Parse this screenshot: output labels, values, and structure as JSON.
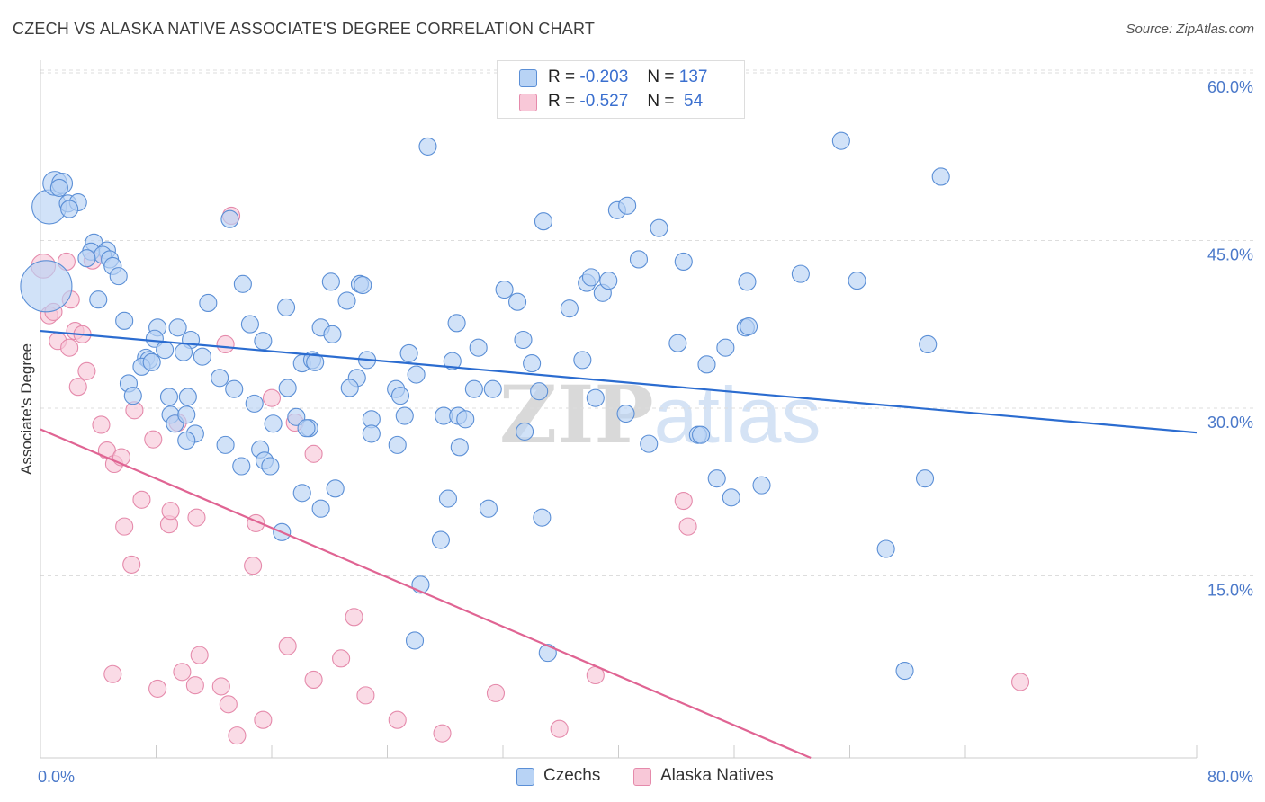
{
  "title": "CZECH VS ALASKA NATIVE ASSOCIATE'S DEGREE CORRELATION CHART",
  "source": "Source: ZipAtlas.com",
  "watermark": "ZIPatlas",
  "legend": {
    "czech": {
      "r_label": "R =",
      "r_value": "-0.203",
      "n_label": "N =",
      "n_value": "137"
    },
    "alaska": {
      "r_label": "R =",
      "r_value": "-0.527",
      "n_label": "N =",
      "n_value": " 54"
    }
  },
  "bottom_legend": {
    "czech": "Czechs",
    "alaska": "Alaska Natives"
  },
  "colors": {
    "czech_fill": "#b8d3f5",
    "czech_stroke": "#5b8fd6",
    "czech_line": "#2b6cd0",
    "alaska_fill": "#f8c8d8",
    "alaska_stroke": "#e58aab",
    "alaska_line": "#e06493",
    "grid": "#dddddd",
    "tick_text": "#4a78c9"
  },
  "chart_data": {
    "type": "scatter",
    "xlabel": "",
    "ylabel": "Associate's Degree",
    "xlim": [
      0,
      80
    ],
    "ylim": [
      0,
      60
    ],
    "x_tick_labels": {
      "min": "0.0%",
      "max": "80.0%"
    },
    "y_ticks": [
      {
        "value": 15,
        "label": "15.0%"
      },
      {
        "value": 30,
        "label": "30.0%"
      },
      {
        "value": 45,
        "label": "45.0%"
      },
      {
        "value": 60,
        "label": "60.0%"
      }
    ],
    "grid": "horizontal dashed",
    "legend_position": "top-center",
    "series": [
      {
        "name": "Czechs",
        "trend": {
          "x1": 0,
          "y1": 38.2,
          "x2": 80,
          "y2": 29.1
        },
        "points": [
          [
            0.4,
            42.2,
            3
          ],
          [
            0.6,
            49.3,
            2
          ],
          [
            1.0,
            51.4,
            1.4
          ],
          [
            1.5,
            51.4,
            1.2
          ],
          [
            1.3,
            51.0,
            1
          ],
          [
            1.9,
            49.6,
            1
          ],
          [
            2.6,
            49.7,
            1
          ],
          [
            2.0,
            49.1,
            1
          ],
          [
            3.7,
            46.1,
            1
          ],
          [
            4.6,
            45.4,
            1
          ],
          [
            3.5,
            45.3,
            1
          ],
          [
            4.3,
            45.0,
            1
          ],
          [
            3.2,
            44.7,
            1
          ],
          [
            4.8,
            44.6,
            1
          ],
          [
            5.0,
            44.0,
            1
          ],
          [
            5.4,
            43.1,
            1
          ],
          [
            4.0,
            41.0,
            1
          ],
          [
            5.8,
            39.1,
            1
          ],
          [
            8.1,
            38.5,
            1
          ],
          [
            9.5,
            38.5,
            1
          ],
          [
            7.9,
            37.5,
            1
          ],
          [
            10.4,
            37.4,
            1
          ],
          [
            8.6,
            36.5,
            1
          ],
          [
            9.9,
            36.3,
            1
          ],
          [
            7.3,
            35.8,
            1
          ],
          [
            7.5,
            35.6,
            1
          ],
          [
            7.0,
            35.0,
            1
          ],
          [
            7.7,
            35.4,
            1
          ],
          [
            6.1,
            33.5,
            1
          ],
          [
            6.4,
            32.4,
            1
          ],
          [
            8.9,
            32.3,
            1
          ],
          [
            9.0,
            30.7,
            1
          ],
          [
            9.3,
            29.9,
            1
          ],
          [
            10.1,
            30.7,
            1
          ],
          [
            10.2,
            32.3,
            1
          ],
          [
            11.2,
            35.9,
            1
          ],
          [
            12.4,
            34.0,
            1
          ],
          [
            11.6,
            40.7,
            1
          ],
          [
            13.1,
            48.2,
            1
          ],
          [
            14.0,
            42.4,
            1
          ],
          [
            14.5,
            38.8,
            1
          ],
          [
            15.4,
            37.3,
            1
          ],
          [
            13.4,
            33.0,
            1
          ],
          [
            14.8,
            31.7,
            1
          ],
          [
            10.7,
            29.0,
            1
          ],
          [
            10.1,
            28.4,
            1
          ],
          [
            12.8,
            28.0,
            1
          ],
          [
            13.9,
            26.1,
            1
          ],
          [
            15.2,
            27.6,
            1
          ],
          [
            15.5,
            26.6,
            1
          ],
          [
            15.9,
            26.1,
            1
          ],
          [
            16.1,
            29.9,
            1
          ],
          [
            17.1,
            33.1,
            1
          ],
          [
            17.0,
            40.3,
            1
          ],
          [
            17.7,
            30.5,
            1
          ],
          [
            18.1,
            35.3,
            1
          ],
          [
            18.8,
            35.6,
            1
          ],
          [
            19.0,
            35.4,
            1
          ],
          [
            19.4,
            38.5,
            1
          ],
          [
            20.2,
            37.9,
            1
          ],
          [
            20.1,
            42.6,
            1
          ],
          [
            21.2,
            40.9,
            1
          ],
          [
            22.1,
            42.4,
            1
          ],
          [
            22.3,
            42.3,
            1
          ],
          [
            22.6,
            35.6,
            1
          ],
          [
            21.9,
            34.0,
            1
          ],
          [
            21.4,
            33.1,
            1
          ],
          [
            18.6,
            29.5,
            1
          ],
          [
            18.4,
            29.5,
            1
          ],
          [
            18.1,
            23.7,
            1
          ],
          [
            19.4,
            22.3,
            1
          ],
          [
            20.4,
            24.1,
            1
          ],
          [
            16.7,
            20.2,
            1
          ],
          [
            22.9,
            30.3,
            1
          ],
          [
            22.9,
            29.0,
            1
          ],
          [
            24.6,
            33.0,
            1
          ],
          [
            24.9,
            32.4,
            1
          ],
          [
            25.5,
            36.2,
            1
          ],
          [
            26.0,
            34.3,
            1
          ],
          [
            25.2,
            30.6,
            1
          ],
          [
            24.7,
            28.0,
            1
          ],
          [
            26.8,
            54.7,
            1
          ],
          [
            28.5,
            35.5,
            1
          ],
          [
            28.8,
            38.9,
            1
          ],
          [
            27.9,
            30.6,
            1
          ],
          [
            28.9,
            30.6,
            1
          ],
          [
            29.4,
            30.3,
            1
          ],
          [
            29.0,
            27.8,
            1
          ],
          [
            28.2,
            23.2,
            1
          ],
          [
            27.7,
            19.5,
            1
          ],
          [
            30.0,
            33.0,
            1
          ],
          [
            30.3,
            36.7,
            1
          ],
          [
            31.3,
            33.0,
            1
          ],
          [
            31.0,
            22.3,
            1
          ],
          [
            32.1,
            41.9,
            1
          ],
          [
            33.0,
            40.8,
            1
          ],
          [
            33.4,
            37.4,
            1
          ],
          [
            34.0,
            35.3,
            1
          ],
          [
            34.5,
            32.8,
            1
          ],
          [
            33.5,
            29.2,
            1
          ],
          [
            34.8,
            48.0,
            1
          ],
          [
            35.1,
            9.4,
            1
          ],
          [
            36.6,
            40.2,
            1
          ],
          [
            37.5,
            35.6,
            1
          ],
          [
            37.8,
            42.5,
            1
          ],
          [
            38.9,
            41.6,
            1
          ],
          [
            38.4,
            32.2,
            1
          ],
          [
            39.3,
            42.7,
            1
          ],
          [
            39.9,
            49.0,
            1
          ],
          [
            40.6,
            49.4,
            1
          ],
          [
            40.5,
            30.8,
            1
          ],
          [
            41.4,
            44.6,
            1
          ],
          [
            42.1,
            28.1,
            1
          ],
          [
            42.8,
            47.4,
            1
          ],
          [
            44.1,
            37.1,
            1
          ],
          [
            44.5,
            44.4,
            1
          ],
          [
            45.5,
            28.9,
            1
          ],
          [
            45.7,
            28.9,
            1
          ],
          [
            46.1,
            35.2,
            1
          ],
          [
            46.8,
            25.0,
            1
          ],
          [
            47.4,
            36.7,
            1
          ],
          [
            47.8,
            23.3,
            1
          ],
          [
            48.8,
            38.5,
            1
          ],
          [
            49.0,
            38.6,
            1
          ],
          [
            48.9,
            42.6,
            1
          ],
          [
            49.9,
            24.4,
            1
          ],
          [
            52.6,
            43.3,
            1
          ],
          [
            55.4,
            55.2,
            1
          ],
          [
            56.5,
            42.7,
            1
          ],
          [
            58.5,
            18.7,
            1
          ],
          [
            59.8,
            7.8,
            1
          ],
          [
            61.2,
            25.0,
            1
          ],
          [
            61.4,
            37.0,
            1
          ],
          [
            62.3,
            52.0,
            1
          ],
          [
            38.1,
            43.0,
            1
          ],
          [
            26.3,
            15.5,
            1
          ],
          [
            25.9,
            10.5,
            1
          ],
          [
            34.7,
            21.5,
            1
          ]
        ]
      },
      {
        "name": "Alaska Natives",
        "trend": {
          "x1": 0,
          "y1": 29.4,
          "x2": 53.3,
          "y2": 0
        },
        "points": [
          [
            0.2,
            44.0,
            1.4
          ],
          [
            0.6,
            39.6,
            1
          ],
          [
            0.9,
            39.9,
            1
          ],
          [
            1.2,
            37.3,
            1
          ],
          [
            1.8,
            44.4,
            1
          ],
          [
            2.0,
            36.7,
            1
          ],
          [
            2.1,
            41.0,
            1
          ],
          [
            2.4,
            38.2,
            1
          ],
          [
            2.6,
            33.2,
            1
          ],
          [
            2.9,
            37.9,
            1
          ],
          [
            3.2,
            34.6,
            1
          ],
          [
            3.6,
            44.5,
            1
          ],
          [
            4.2,
            29.8,
            1
          ],
          [
            4.6,
            27.5,
            1
          ],
          [
            5.1,
            26.3,
            1
          ],
          [
            5.6,
            26.9,
            1
          ],
          [
            6.5,
            31.1,
            1
          ],
          [
            7.0,
            23.1,
            1
          ],
          [
            5.8,
            20.7,
            1
          ],
          [
            6.3,
            17.3,
            1
          ],
          [
            7.8,
            28.5,
            1
          ],
          [
            8.9,
            20.9,
            1
          ],
          [
            9.0,
            22.1,
            1
          ],
          [
            9.5,
            30.0,
            1
          ],
          [
            10.8,
            21.5,
            1
          ],
          [
            13.2,
            48.5,
            1
          ],
          [
            12.8,
            37.0,
            1
          ],
          [
            14.9,
            21.0,
            1
          ],
          [
            14.7,
            17.2,
            1
          ],
          [
            16.0,
            32.2,
            1
          ],
          [
            17.6,
            30.0,
            1
          ],
          [
            18.9,
            27.2,
            1
          ],
          [
            5.0,
            7.5,
            1
          ],
          [
            8.1,
            6.2,
            1
          ],
          [
            9.8,
            7.7,
            1
          ],
          [
            10.7,
            6.5,
            1
          ],
          [
            11.0,
            9.2,
            1
          ],
          [
            12.5,
            6.4,
            1
          ],
          [
            13.0,
            4.8,
            1
          ],
          [
            13.6,
            2.0,
            1
          ],
          [
            15.4,
            3.4,
            1
          ],
          [
            17.1,
            10.0,
            1
          ],
          [
            18.9,
            7.0,
            1
          ],
          [
            20.8,
            8.9,
            1
          ],
          [
            21.7,
            12.6,
            1
          ],
          [
            22.5,
            5.6,
            1
          ],
          [
            24.7,
            3.4,
            1
          ],
          [
            27.8,
            2.2,
            1
          ],
          [
            31.5,
            5.8,
            1
          ],
          [
            35.9,
            2.6,
            1
          ],
          [
            38.4,
            7.4,
            1
          ],
          [
            44.5,
            23.0,
            1
          ],
          [
            44.8,
            20.7,
            1
          ],
          [
            67.8,
            6.8,
            1
          ]
        ]
      }
    ]
  }
}
